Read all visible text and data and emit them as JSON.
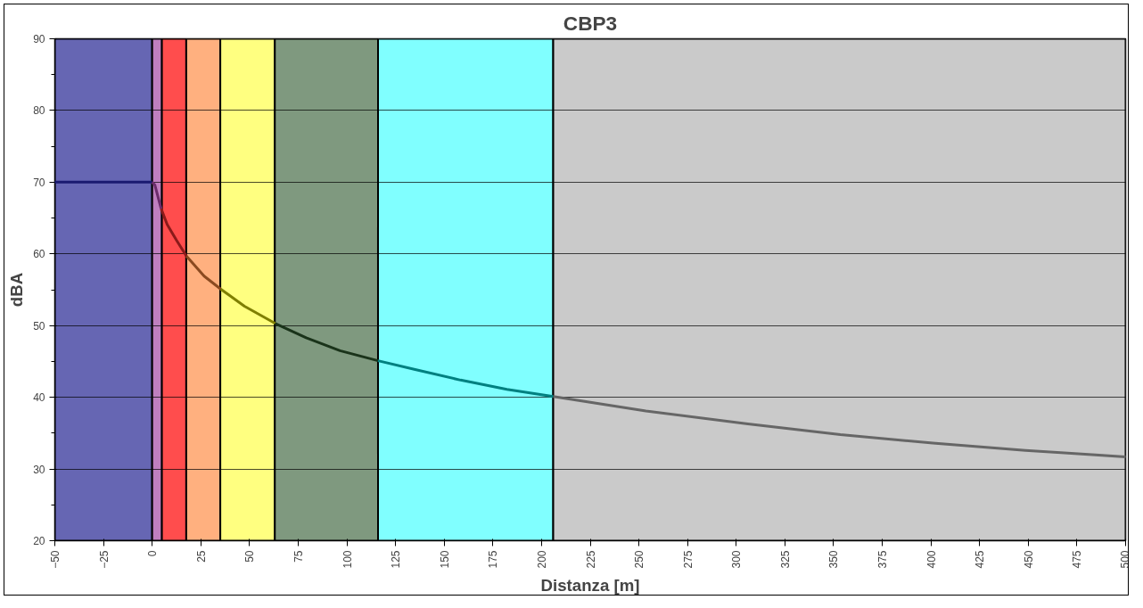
{
  "chart_data": {
    "type": "line",
    "title": "CBP3",
    "xlabel": "Distanza [m]",
    "ylabel": "dBA",
    "xlim": [
      -50,
      500
    ],
    "xticks": [
      -50,
      -25,
      0,
      25,
      50,
      75,
      100,
      125,
      150,
      175,
      200,
      225,
      250,
      275,
      300,
      325,
      350,
      375,
      400,
      425,
      450,
      475,
      500
    ],
    "ylim": [
      20,
      90
    ],
    "yticks": [
      20,
      30,
      40,
      50,
      60,
      70,
      80,
      90
    ],
    "grid": "y",
    "bands": [
      {
        "axis": "x",
        "from": -50,
        "to": 0,
        "color": "#6666b3"
      },
      {
        "axis": "x",
        "from": 0,
        "to": 5,
        "color": "#bf7fbf"
      },
      {
        "axis": "x",
        "from": 5,
        "to": 17.5,
        "color": "#ff4d4d"
      },
      {
        "axis": "x",
        "from": 17.5,
        "to": 35,
        "color": "#ffb07f"
      },
      {
        "axis": "x",
        "from": 35,
        "to": 63,
        "color": "#ffff80"
      },
      {
        "axis": "x",
        "from": 63,
        "to": 116,
        "color": "#7f997f"
      },
      {
        "axis": "x",
        "from": 116,
        "to": 206,
        "color": "#80ffff"
      },
      {
        "axis": "x",
        "from": 206,
        "to": 500,
        "color": "#cacaca"
      }
    ],
    "series": [
      {
        "color": "#1a1a70",
        "x": [
          -50,
          0
        ],
        "values": [
          70,
          70
        ]
      },
      {
        "color": "#6b2c6b",
        "x": [
          0,
          1.4,
          4.6
        ],
        "values": [
          70,
          69.6,
          66.3
        ]
      },
      {
        "color": "#8b1a1a",
        "x": [
          4.6,
          7.7,
          12.5,
          17.6
        ],
        "values": [
          66.3,
          64.1,
          61.9,
          59.7
        ]
      },
      {
        "color": "#8b4a20",
        "x": [
          17.6,
          26.7,
          35.2
        ],
        "values": [
          59.7,
          56.9,
          55.1
        ]
      },
      {
        "color": "#7f7f00",
        "x": [
          35.2,
          47.4,
          63.2
        ],
        "values": [
          55.1,
          52.7,
          50.3
        ]
      },
      {
        "color": "#1a331a",
        "x": [
          63.2,
          79.1,
          96.5,
          116
        ],
        "values": [
          50.3,
          48.3,
          46.5,
          45.1
        ]
      },
      {
        "color": "#008080",
        "x": [
          116,
          134.6,
          158.4,
          182.2,
          206
        ],
        "values": [
          45.1,
          43.9,
          42.4,
          41.1,
          40.1
        ]
      },
      {
        "color": "#666666",
        "x": [
          206,
          253.6,
          306,
          353.5,
          401,
          448.6,
          500
        ],
        "values": [
          40.1,
          38.1,
          36.3,
          34.8,
          33.6,
          32.6,
          31.7
        ]
      }
    ]
  }
}
